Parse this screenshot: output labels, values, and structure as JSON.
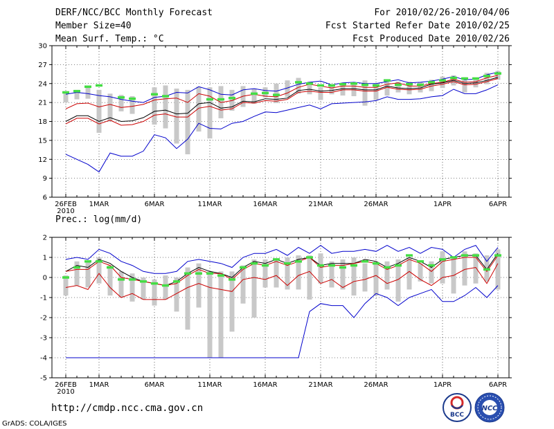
{
  "header": {
    "title": "DERF/NCC/BCC Monthly Forecast",
    "member_size": "Member Size=40",
    "variable": "Mean Surf. Temp.: °C",
    "forecast_period": "For 2010/02/26-2010/04/06",
    "started_refer": "Fcst Started Refer Date 2010/02/25",
    "produced": "Fcst Produced Date 2010/02/26"
  },
  "footer": {
    "url": "http://cmdp.ncc.cma.gov.cn",
    "grads": "GrADS: COLA/IGES",
    "logo_bcc": "BCC",
    "logo_ncc": "NCC"
  },
  "colors": {
    "ensemble_mean": "#000000",
    "spread": "#cc0000",
    "extremes": "#0000cc",
    "climatology": "#44dd44",
    "range_bar": "#c8c8c8"
  },
  "chart_data": [
    {
      "type": "line",
      "title": "Mean Surf. Temp.: °C",
      "ylabel": "°C",
      "ylim": [
        6,
        30
      ],
      "yticks": [
        "30",
        "27",
        "24",
        "21",
        "18",
        "15",
        "12",
        "9",
        "6"
      ],
      "ytick_values": [
        30,
        27,
        24,
        21,
        18,
        15,
        12,
        9,
        6
      ],
      "xticks": [
        {
          "day": 0,
          "label": "26FEB",
          "sub": "2010"
        },
        {
          "day": 3,
          "label": "1MAR"
        },
        {
          "day": 8,
          "label": "6MAR"
        },
        {
          "day": 13,
          "label": "11MAR"
        },
        {
          "day": 18,
          "label": "16MAR"
        },
        {
          "day": 23,
          "label": "21MAR"
        },
        {
          "day": 28,
          "label": "26MAR"
        },
        {
          "day": 34,
          "label": "1APR"
        },
        {
          "day": 39,
          "label": "6APR"
        }
      ],
      "series": [
        {
          "name": "max",
          "color": "extremes",
          "values": [
            22.3,
            22.6,
            22.4,
            22.1,
            21.9,
            21.5,
            21.2,
            21.0,
            21.8,
            22.0,
            22.6,
            22.5,
            23.5,
            23.0,
            22.3,
            22.2,
            23.0,
            23.2,
            22.9,
            22.8,
            23.3,
            23.9,
            24.2,
            24.4,
            23.8,
            24.1,
            24.2,
            24.0,
            24.0,
            24.3,
            24.6,
            24.1,
            24.2,
            24.4,
            24.7,
            25.1,
            24.6,
            24.7,
            25.4,
            25.8
          ]
        },
        {
          "name": "upper",
          "color": "spread",
          "values": [
            20.0,
            20.8,
            20.9,
            20.3,
            20.7,
            20.2,
            20.4,
            20.7,
            21.4,
            21.6,
            21.7,
            21.0,
            22.4,
            22.0,
            21.0,
            21.3,
            22.0,
            22.3,
            22.0,
            21.9,
            22.5,
            23.4,
            23.9,
            23.6,
            23.3,
            23.6,
            23.6,
            23.4,
            23.4,
            23.9,
            24.1,
            23.6,
            23.6,
            24.0,
            24.2,
            24.7,
            24.2,
            24.3,
            24.9,
            25.3
          ]
        },
        {
          "name": "mean_upper",
          "color": "ensemble_mean",
          "values": [
            18.0,
            18.9,
            18.9,
            18.0,
            18.6,
            18.0,
            18.1,
            18.6,
            19.6,
            19.8,
            19.2,
            19.3,
            20.8,
            21.0,
            20.1,
            20.3,
            21.2,
            21.1,
            21.6,
            21.5,
            21.7,
            22.9,
            23.1,
            22.8,
            22.9,
            23.2,
            23.2,
            23.0,
            23.0,
            23.6,
            23.3,
            23.2,
            23.3,
            23.9,
            24.1,
            24.5,
            24.0,
            24.1,
            24.5,
            25.0
          ]
        },
        {
          "name": "mean_lower",
          "color": "spread",
          "values": [
            17.6,
            18.5,
            18.5,
            17.6,
            18.2,
            17.4,
            17.5,
            18.0,
            19.0,
            19.2,
            18.7,
            18.7,
            20.1,
            20.4,
            19.8,
            20.0,
            21.0,
            20.9,
            21.3,
            21.2,
            21.5,
            22.6,
            22.8,
            22.6,
            22.6,
            23.0,
            23.0,
            22.8,
            22.8,
            23.4,
            23.1,
            23.0,
            23.1,
            23.6,
            23.9,
            24.3,
            23.8,
            23.9,
            24.3,
            24.8
          ]
        },
        {
          "name": "min",
          "color": "extremes",
          "values": [
            12.8,
            12.0,
            11.2,
            10.0,
            13.0,
            12.5,
            12.5,
            13.3,
            15.9,
            15.4,
            13.7,
            15.2,
            17.7,
            16.9,
            16.8,
            17.7,
            18.0,
            18.8,
            19.5,
            19.4,
            19.8,
            20.2,
            20.6,
            20.0,
            20.8,
            20.9,
            21.0,
            21.1,
            21.3,
            21.9,
            21.5,
            21.5,
            21.6,
            21.9,
            22.1,
            23.1,
            22.4,
            22.4,
            23.0,
            23.8
          ]
        },
        {
          "name": "climatology",
          "color": "climatology",
          "values": [
            22.6,
            22.8,
            23.5,
            23.7,
            null,
            21.8,
            21.6,
            null,
            22.3,
            22.0,
            null,
            null,
            null,
            21.5,
            21.5,
            21.7,
            null,
            22.4,
            22.5,
            22.2,
            null,
            24.2,
            24.0,
            23.7,
            23.7,
            23.9,
            24.0,
            23.8,
            23.7,
            24.5,
            23.8,
            23.9,
            23.8,
            24.2,
            24.5,
            24.9,
            24.8,
            24.8,
            25.2,
            25.6
          ]
        }
      ],
      "range_bars": [
        [
          22.8,
          21.0
        ],
        [
          23.0,
          21.5
        ],
        [
          23.5,
          21.6
        ],
        [
          23.0,
          16.2
        ],
        [
          22.4,
          18.0
        ],
        [
          22.2,
          19.6
        ],
        [
          22.0,
          19.2
        ],
        [
          null,
          null
        ],
        [
          23.4,
          17.5
        ],
        [
          23.7,
          16.9
        ],
        [
          23.2,
          14.5
        ],
        [
          23.0,
          12.8
        ],
        [
          23.5,
          16.4
        ],
        [
          23.4,
          15.3
        ],
        [
          23.6,
          18.5
        ],
        [
          23.0,
          19.7
        ],
        [
          23.6,
          20.3
        ],
        [
          23.2,
          20.8
        ],
        [
          23.4,
          21.8
        ],
        [
          24.0,
          20.9
        ],
        [
          24.5,
          21.9
        ],
        [
          24.9,
          22.4
        ],
        [
          24.3,
          22.3
        ],
        [
          23.4,
          21.4
        ],
        [
          23.6,
          22.3
        ],
        [
          24.1,
          22.1
        ],
        [
          24.2,
          22.0
        ],
        [
          24.5,
          20.5
        ],
        [
          24.0,
          21.4
        ],
        [
          24.6,
          22.1
        ],
        [
          24.3,
          22.6
        ],
        [
          24.3,
          22.3
        ],
        [
          24.2,
          22.6
        ],
        [
          24.6,
          22.8
        ],
        [
          25.1,
          23.3
        ],
        [
          25.3,
          23.7
        ],
        [
          25.0,
          22.6
        ],
        [
          24.9,
          23.4
        ],
        [
          25.7,
          23.9
        ],
        [
          26.0,
          24.6
        ]
      ]
    },
    {
      "type": "line",
      "title": "Prec.: log(mm/d)",
      "ylabel": "log(mm/d)",
      "ylim": [
        -5,
        2
      ],
      "yticks": [
        "2",
        "1",
        "0",
        "-1",
        "-2",
        "-3",
        "-4",
        "-5"
      ],
      "ytick_values": [
        2,
        1,
        0,
        -1,
        -2,
        -3,
        -4,
        -5
      ],
      "xticks": [
        {
          "day": 0,
          "label": "26FEB",
          "sub": "2010"
        },
        {
          "day": 3,
          "label": "1MAR"
        },
        {
          "day": 8,
          "label": "6MAR"
        },
        {
          "day": 13,
          "label": "11MAR"
        },
        {
          "day": 18,
          "label": "16MAR"
        },
        {
          "day": 23,
          "label": "21MAR"
        },
        {
          "day": 28,
          "label": "26MAR"
        },
        {
          "day": 34,
          "label": "1APR"
        },
        {
          "day": 39,
          "label": "6APR"
        }
      ],
      "series": [
        {
          "name": "max",
          "color": "extremes",
          "values": [
            0.9,
            1.0,
            0.9,
            1.4,
            1.2,
            0.8,
            0.6,
            0.3,
            0.2,
            0.2,
            0.3,
            0.8,
            0.9,
            0.8,
            0.7,
            0.5,
            1.0,
            1.2,
            1.2,
            1.4,
            1.1,
            1.5,
            1.2,
            1.6,
            1.2,
            1.3,
            1.3,
            1.4,
            1.3,
            1.6,
            1.3,
            1.5,
            1.2,
            1.5,
            1.4,
            1.0,
            1.4,
            1.6,
            0.8,
            1.5
          ]
        },
        {
          "name": "upper",
          "color": "ensemble_mean",
          "values": [
            0.3,
            0.6,
            0.5,
            0.9,
            0.7,
            0.3,
            0.0,
            -0.2,
            -0.3,
            -0.4,
            -0.2,
            0.2,
            0.5,
            0.3,
            0.2,
            0.0,
            0.5,
            0.8,
            0.7,
            0.9,
            0.7,
            0.9,
            1.0,
            0.6,
            0.7,
            0.7,
            0.7,
            0.9,
            0.8,
            0.5,
            0.7,
            1.0,
            0.8,
            0.5,
            0.9,
            1.0,
            1.1,
            1.1,
            0.4,
            1.2
          ]
        },
        {
          "name": "mean",
          "color": "spread",
          "values": [
            0.3,
            0.4,
            0.4,
            0.8,
            0.6,
            0.0,
            -0.1,
            -0.2,
            -0.3,
            -0.4,
            -0.3,
            0.1,
            0.4,
            0.2,
            0.2,
            -0.1,
            0.4,
            0.7,
            0.6,
            0.8,
            0.6,
            0.8,
            1.0,
            0.5,
            0.6,
            0.6,
            0.7,
            0.8,
            0.7,
            0.4,
            0.6,
            0.9,
            0.7,
            0.3,
            0.8,
            0.9,
            1.0,
            1.0,
            0.3,
            1.1
          ]
        },
        {
          "name": "lower",
          "color": "spread",
          "values": [
            -0.5,
            -0.4,
            -0.6,
            0.2,
            -0.5,
            -1.0,
            -0.8,
            -1.1,
            -1.1,
            -1.1,
            -0.8,
            -0.5,
            -0.3,
            -0.5,
            -0.6,
            -0.7,
            -0.1,
            0.0,
            -0.1,
            0.1,
            -0.4,
            0.1,
            0.3,
            -0.3,
            -0.1,
            -0.5,
            -0.2,
            -0.1,
            0.1,
            -0.3,
            -0.1,
            0.3,
            -0.1,
            -0.4,
            0.0,
            0.1,
            0.4,
            0.5,
            -0.3,
            0.7
          ]
        },
        {
          "name": "min",
          "color": "extremes",
          "values": [
            -4,
            -4,
            -4,
            -4,
            -4,
            -4,
            -4,
            -4,
            -4,
            -4,
            -4,
            -4,
            -4,
            -4,
            -4,
            -4,
            -4,
            -4,
            -4,
            -4,
            -4,
            -4,
            -1.7,
            -1.3,
            -1.4,
            -1.4,
            -2.0,
            -1.3,
            -0.8,
            -1.0,
            -1.4,
            -1.0,
            -0.8,
            -0.6,
            -1.2,
            -1.2,
            -0.9,
            -0.5,
            -1.0,
            -0.4
          ]
        },
        {
          "name": "climatology",
          "color": "climatology",
          "values": [
            0.0,
            0.5,
            0.8,
            0.8,
            0.5,
            -0.1,
            -0.1,
            -0.2,
            -0.3,
            -0.4,
            -0.2,
            0.2,
            0.2,
            0.2,
            0.1,
            -0.1,
            0.5,
            0.7,
            0.6,
            0.9,
            0.7,
            0.8,
            1.0,
            0.6,
            0.6,
            0.5,
            0.6,
            0.8,
            0.7,
            0.5,
            0.6,
            1.1,
            0.8,
            0.6,
            0.9,
            1.0,
            1.1,
            1.1,
            0.4,
            1.1
          ]
        }
      ],
      "range_bars": [
        [
          0.1,
          -0.9
        ],
        [
          0.8,
          -0.4
        ],
        [
          0.8,
          -0.5
        ],
        [
          1.0,
          -0.3
        ],
        [
          0.6,
          -0.9
        ],
        [
          0.3,
          -1.0
        ],
        [
          0.2,
          -1.2
        ],
        [
          0.0,
          -1.1
        ],
        [
          -0.1,
          -1.4
        ],
        [
          0.1,
          -1.1
        ],
        [
          0.0,
          -1.7
        ],
        [
          0.5,
          -2.6
        ],
        [
          0.7,
          -1.5
        ],
        [
          0.3,
          -4.0
        ],
        [
          0.3,
          -4.0
        ],
        [
          0.3,
          -2.7
        ],
        [
          0.6,
          -1.3
        ],
        [
          0.9,
          -2.0
        ],
        [
          0.9,
          -0.5
        ],
        [
          0.9,
          -0.5
        ],
        [
          1.0,
          -0.6
        ],
        [
          1.1,
          -0.6
        ],
        [
          1.1,
          -1.1
        ],
        [
          1.2,
          -0.3
        ],
        [
          0.8,
          -0.5
        ],
        [
          0.9,
          -0.6
        ],
        [
          1.0,
          -0.9
        ],
        [
          0.7,
          -0.7
        ],
        [
          0.8,
          -0.9
        ],
        [
          0.8,
          -0.6
        ],
        [
          0.9,
          -1.2
        ],
        [
          1.0,
          -0.6
        ],
        [
          0.7,
          -0.2
        ],
        [
          0.8,
          -0.3
        ],
        [
          1.3,
          -0.3
        ],
        [
          1.0,
          -0.8
        ],
        [
          1.3,
          -0.4
        ],
        [
          1.2,
          -0.3
        ],
        [
          1.1,
          -0.2
        ],
        [
          1.4,
          -0.6
        ]
      ]
    }
  ]
}
